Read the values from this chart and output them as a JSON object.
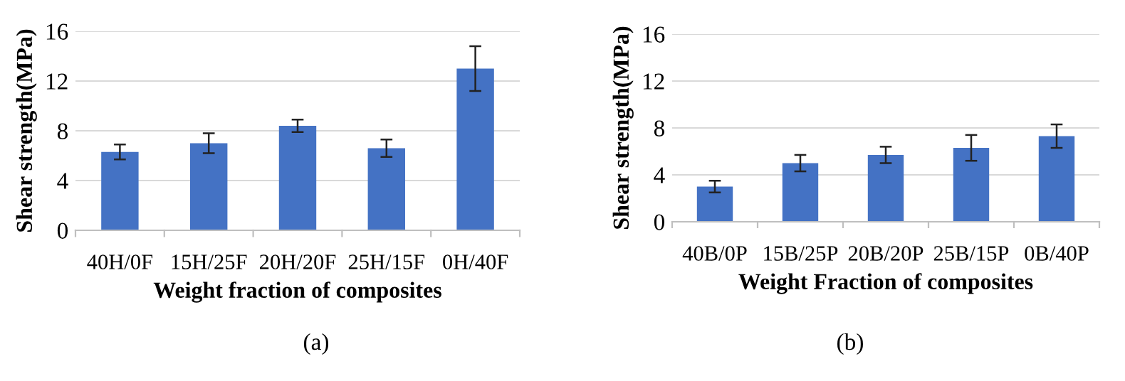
{
  "chart_data": [
    {
      "type": "bar",
      "xlabel": "Weight fraction of composites",
      "ylabel": "Shear strength(MPa)",
      "categories": [
        "40H/0F",
        "15H/25F",
        "20H/20F",
        "25H/15F",
        "0H/40F"
      ],
      "values": [
        6.3,
        7.0,
        8.4,
        6.6,
        13.0
      ],
      "errors": [
        0.6,
        0.8,
        0.5,
        0.7,
        1.8
      ],
      "color": "#4472c4",
      "ylim": [
        0,
        16
      ],
      "yticks": [
        0,
        4,
        8,
        12,
        16
      ],
      "grid": "y",
      "annotations": [
        "(a)"
      ]
    },
    {
      "type": "bar",
      "xlabel": "Weight Fraction of composites",
      "ylabel": "Shear strength(MPa)",
      "categories": [
        "40B/0P",
        "15B/25P",
        "20B/20P",
        "25B/15P",
        "0B/40P"
      ],
      "values": [
        3.0,
        5.0,
        5.7,
        6.3,
        7.3
      ],
      "errors": [
        0.5,
        0.7,
        0.7,
        1.1,
        1.0
      ],
      "color": "#4472c4",
      "ylim": [
        0,
        16
      ],
      "yticks": [
        0,
        4,
        8,
        12,
        16
      ],
      "grid": "y",
      "annotations": [
        "(b)"
      ]
    }
  ]
}
